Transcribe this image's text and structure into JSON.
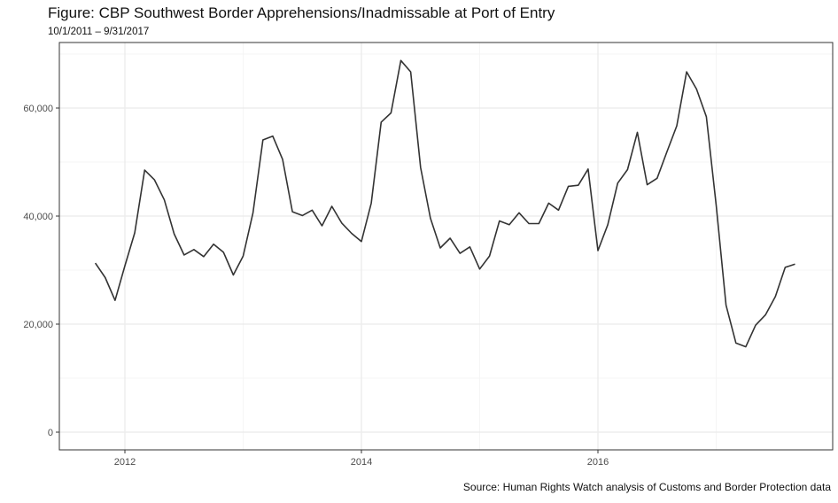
{
  "title": "Figure: CBP Southwest Border Apprehensions/Inadmissable at Port of Entry",
  "subtitle": "10/1/2011 – 9/31/2017",
  "caption": "Source: Human Rights Watch analysis of Customs and Border Protection data",
  "colors": {
    "line": "#333333",
    "grid_major": "#ebebeb",
    "grid_minor": "#f5f5f5",
    "panel_border": "#333333"
  },
  "chart_data": {
    "type": "line",
    "title": "Figure: CBP Southwest Border Apprehensions/Inadmissable at Port of Entry",
    "subtitle": "10/1/2011 – 9/31/2017",
    "xlabel": "",
    "ylabel": "",
    "ylim": [
      -3500,
      72000
    ],
    "yticks": [
      0,
      20000,
      40000,
      60000
    ],
    "ytick_labels": [
      "0",
      "20,000",
      "40,000",
      "60,000"
    ],
    "xticks": [
      2012,
      2014,
      2016
    ],
    "xtick_labels": [
      "2012",
      "2014",
      "2016"
    ],
    "grid": true,
    "legend": null,
    "x_start": "2011-10",
    "x_unit": "month",
    "series": [
      {
        "name": "Apprehensions/Inadmissable",
        "x": [
          "2011-10",
          "2011-11",
          "2011-12",
          "2012-01",
          "2012-02",
          "2012-03",
          "2012-04",
          "2012-05",
          "2012-06",
          "2012-07",
          "2012-08",
          "2012-09",
          "2012-10",
          "2012-11",
          "2012-12",
          "2013-01",
          "2013-02",
          "2013-03",
          "2013-04",
          "2013-05",
          "2013-06",
          "2013-07",
          "2013-08",
          "2013-09",
          "2013-10",
          "2013-11",
          "2013-12",
          "2014-01",
          "2014-02",
          "2014-03",
          "2014-04",
          "2014-05",
          "2014-06",
          "2014-07",
          "2014-08",
          "2014-09",
          "2014-10",
          "2014-11",
          "2014-12",
          "2015-01",
          "2015-02",
          "2015-03",
          "2015-04",
          "2015-05",
          "2015-06",
          "2015-07",
          "2015-08",
          "2015-09",
          "2015-10",
          "2015-11",
          "2015-12",
          "2016-01",
          "2016-02",
          "2016-03",
          "2016-04",
          "2016-05",
          "2016-06",
          "2016-07",
          "2016-08",
          "2016-09",
          "2016-10",
          "2016-11",
          "2016-12",
          "2017-01",
          "2017-02",
          "2017-03",
          "2017-04",
          "2017-05",
          "2017-06",
          "2017-07",
          "2017-08",
          "2017-09"
        ],
        "values": [
          31300,
          28600,
          24400,
          30800,
          36900,
          48500,
          46700,
          43000,
          36700,
          32800,
          33800,
          32500,
          34800,
          33300,
          29100,
          32600,
          40600,
          54100,
          54800,
          50500,
          40800,
          40100,
          41100,
          38200,
          41800,
          38700,
          36800,
          35300,
          42400,
          57400,
          59100,
          68800,
          66700,
          49000,
          39600,
          34100,
          35900,
          33100,
          34300,
          30200,
          32600,
          39100,
          38400,
          40600,
          38600,
          38600,
          42400,
          41100,
          45500,
          45700,
          48700,
          33600,
          38400,
          46100,
          48600,
          55500,
          45800,
          47000,
          51900,
          56700,
          66700,
          63500,
          58400,
          42000,
          23500,
          16500,
          15800,
          19800,
          21700,
          25100,
          30500,
          31100
        ]
      }
    ]
  }
}
